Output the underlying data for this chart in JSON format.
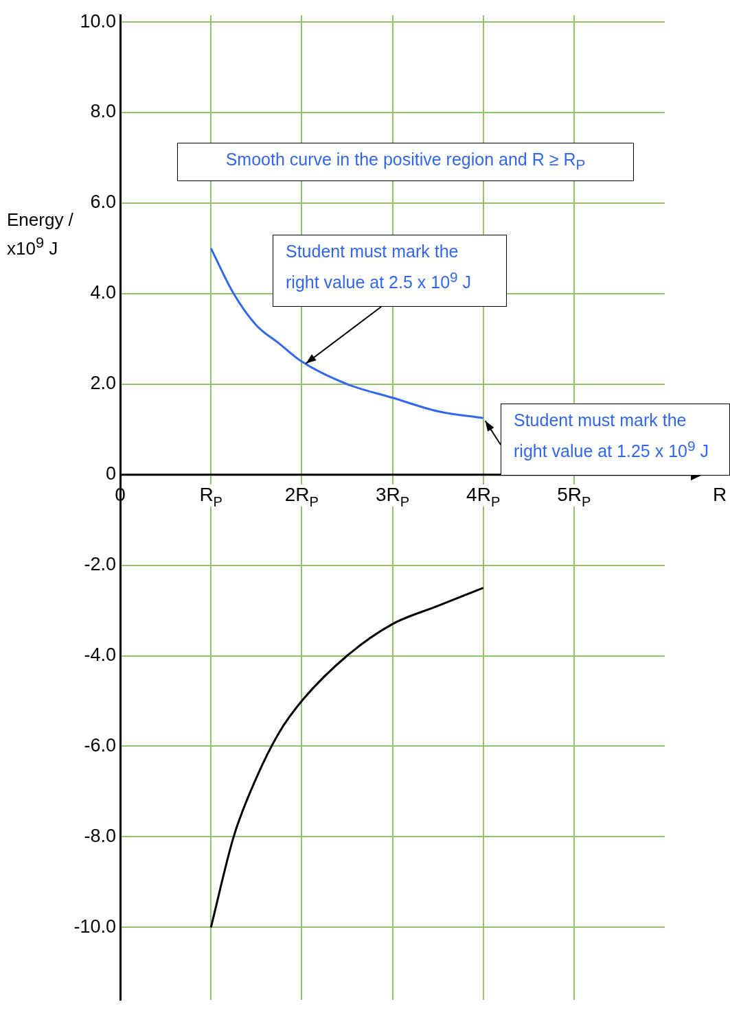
{
  "chart_data": {
    "type": "line",
    "xlabel": "R",
    "ylabel": "Energy / x10$^{9}$ J",
    "x": [
      1,
      1.25,
      1.5,
      1.75,
      2,
      2.5,
      3,
      3.5,
      4
    ],
    "series": [
      {
        "color": "#3366ee",
        "values": [
          5,
          4,
          3.3,
          2.9,
          2.5,
          2.0,
          1.7,
          1.4,
          1.25
        ]
      },
      {
        "color": "#000000",
        "values": [
          -10,
          -8,
          -6.7,
          -5.7,
          -5,
          -4,
          -3.3,
          -2.9,
          -2.5
        ]
      }
    ],
    "xlim": [
      0,
      6
    ],
    "xticks": [
      0,
      {
        "value": 1,
        "label": "R$_{P}$"
      },
      {
        "value": 2,
        "label": "2R$_{P}$"
      },
      {
        "value": 3,
        "label": "3R$_{P}$"
      },
      {
        "value": 4,
        "label": "4R$_{P}$"
      },
      {
        "value": 5,
        "label": "5R$_{P}$"
      }
    ],
    "ylim": [
      -11.6,
      10.15
    ],
    "yticks": [
      {
        "value": 10,
        "label": "10.0"
      },
      {
        "value": 8,
        "label": "8.0"
      },
      {
        "value": 6,
        "label": "6.0"
      },
      {
        "value": 4,
        "label": "4.0"
      },
      {
        "value": 2,
        "label": "2.0"
      },
      0,
      {
        "value": -2,
        "label": "-2.0"
      },
      {
        "value": -4,
        "label": "-4.0"
      },
      {
        "value": -6,
        "label": "-6.0"
      },
      {
        "value": -8,
        "label": "-8.0"
      },
      {
        "value": -10,
        "label": "-10.0"
      }
    ],
    "annotations": [
      "Smooth curve in the positive region and R ≥ R$_{P}$",
      {
        "text": "Student must mark the right value at 2.5 x 10$^{9}$ J",
        "x": 2,
        "y": 2.5
      },
      {
        "text": "Student must mark the right value at 1.25 x 10$^{9}$ J",
        "x": 4,
        "y": 1.25
      }
    ],
    "grid": true,
    "legend": false,
    "marker": "none",
    "line_style": "solid"
  }
}
